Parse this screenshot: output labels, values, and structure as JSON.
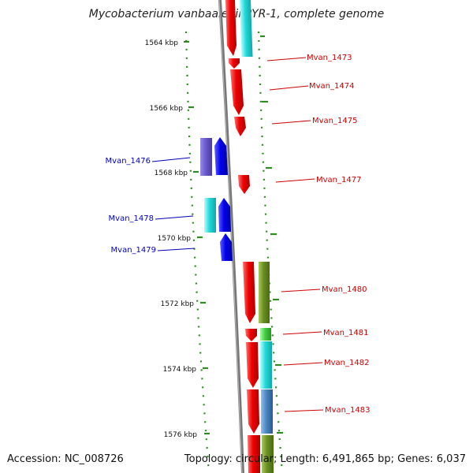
{
  "title": "Mycobacterium vanbaalenii PYR-1, complete genome",
  "footer": {
    "accession": "Accession: NC_008726",
    "summary": "Topology: circular; Length: 6,491,865 bp; Genes: 6,037"
  },
  "colors": {
    "backbone": "#808080",
    "tick": "#2e8b1f",
    "forward_label": "#cc0000",
    "reverse_label": "#0000bb",
    "cds_forward": "#ee0000",
    "cds_reverse": "#0000ee",
    "cyan": "#22d8d8",
    "purple_blue": "#6a5acd",
    "olive": "#6b8e23",
    "green": "#44cc44",
    "steel_blue": "#4a86c0"
  },
  "scale_labels": [
    "1564 kbp",
    "1566 kbp",
    "1568 kbp",
    "1570 kbp",
    "1572 kbp",
    "1574 kbp",
    "1576 kbp"
  ],
  "forward_gene_labels": [
    "Mvan_1473",
    "Mvan_1474",
    "Mvan_1475",
    "Mvan_1477",
    "Mvan_1480",
    "Mvan_1481",
    "Mvan_1482",
    "Mvan_1483"
  ],
  "reverse_gene_labels": [
    "Mvan_1476",
    "Mvan_1478",
    "Mvan_1479"
  ]
}
